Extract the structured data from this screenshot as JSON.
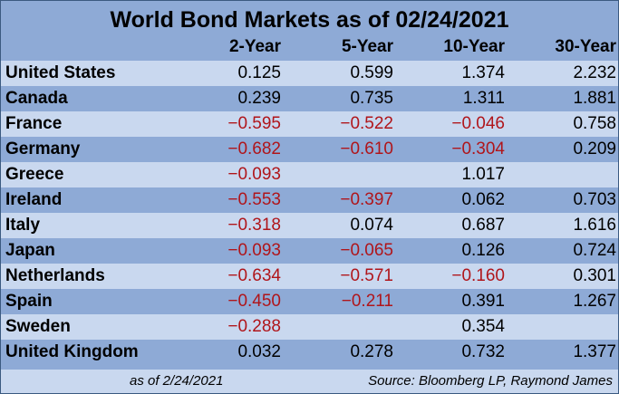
{
  "title": "World Bond Markets as of 02/24/2021",
  "columns": [
    "2-Year",
    "5-Year",
    "10-Year",
    "30-Year"
  ],
  "rows": [
    {
      "country": "United States",
      "values": [
        "0.125",
        "0.599",
        "1.374",
        "2.232"
      ]
    },
    {
      "country": "Canada",
      "values": [
        "0.239",
        "0.735",
        "1.311",
        "1.881"
      ]
    },
    {
      "country": "France",
      "values": [
        "-0.595",
        "-0.522",
        "-0.046",
        "0.758"
      ]
    },
    {
      "country": "Germany",
      "values": [
        "-0.682",
        "-0.610",
        "-0.304",
        "0.209"
      ]
    },
    {
      "country": "Greece",
      "values": [
        "-0.093",
        "",
        "1.017",
        ""
      ]
    },
    {
      "country": "Ireland",
      "values": [
        "-0.553",
        "-0.397",
        "0.062",
        "0.703"
      ]
    },
    {
      "country": "Italy",
      "values": [
        "-0.318",
        "0.074",
        "0.687",
        "1.616"
      ]
    },
    {
      "country": "Japan",
      "values": [
        "-0.093",
        "-0.065",
        "0.126",
        "0.724"
      ]
    },
    {
      "country": "Netherlands",
      "values": [
        "-0.634",
        "-0.571",
        "-0.160",
        "0.301"
      ]
    },
    {
      "country": "Spain",
      "values": [
        "-0.450",
        "-0.211",
        "0.391",
        "1.267"
      ]
    },
    {
      "country": "Sweden",
      "values": [
        "-0.288",
        "",
        "0.354",
        ""
      ]
    },
    {
      "country": "United Kingdom",
      "values": [
        "0.032",
        "0.278",
        "0.732",
        "1.377"
      ]
    }
  ],
  "footer": {
    "as_of": "as of   2/24/2021",
    "source": "Source: Bloomberg LP, Raymond James"
  },
  "colors": {
    "dark_band": "#8eaad6",
    "light_band": "#c9d8ef",
    "negative": "#b0151a"
  }
}
